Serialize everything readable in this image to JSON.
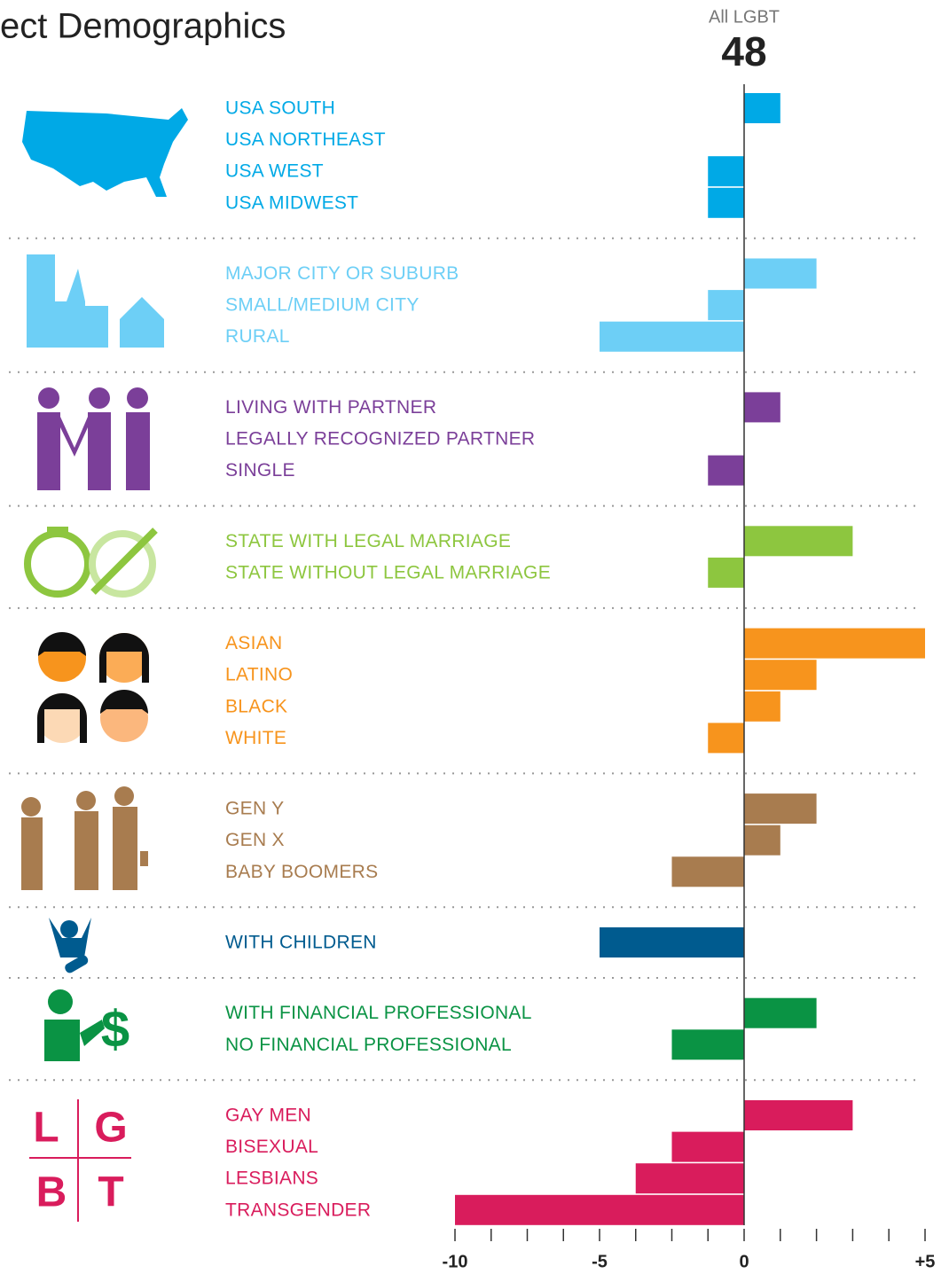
{
  "chart_data": {
    "type": "bar",
    "title": "ect Demographics",
    "baseline_label": "All LGBT",
    "baseline_value": 48,
    "icon_letters": [
      "L",
      "G",
      "B",
      "T"
    ],
    "xlim": [
      -10,
      5
    ],
    "xticks": [
      -10,
      -5,
      0,
      {
        "value": 5,
        "label": "+5"
      }
    ],
    "xticks_minor": [
      -8.75,
      -7.5,
      -6.25,
      -3.75,
      -2.5,
      -1.25,
      1,
      2,
      3,
      4
    ],
    "groups": [
      {
        "color": "#00a9e6",
        "categories": [
          "USA SOUTH",
          "USA NORTHEAST",
          "USA WEST",
          "USA MIDWEST"
        ],
        "values": [
          1,
          0,
          -1.25,
          -1.25
        ]
      },
      {
        "color": "#6dcff6",
        "categories": [
          "MAJOR CITY OR SUBURB",
          "SMALL/MEDIUM CITY",
          "RURAL"
        ],
        "values": [
          2,
          -1.25,
          -5
        ]
      },
      {
        "color": "#7b3f99",
        "categories": [
          "LIVING WITH PARTNER",
          "LEGALLY RECOGNIZED PARTNER",
          "SINGLE"
        ],
        "values": [
          1,
          0,
          -1.25
        ]
      },
      {
        "color": "#8dc63f",
        "categories": [
          "STATE WITH LEGAL MARRIAGE",
          "STATE WITHOUT LEGAL MARRIAGE"
        ],
        "values": [
          3,
          -1.25
        ]
      },
      {
        "color": "#f7941d",
        "categories": [
          "ASIAN",
          "LATINO",
          "BLACK",
          "WHITE"
        ],
        "values": [
          5,
          2,
          1,
          -1.25
        ]
      },
      {
        "color": "#a87c4f",
        "categories": [
          "GEN Y",
          "GEN X",
          "BABY BOOMERS"
        ],
        "values": [
          2,
          1,
          -2.5
        ]
      },
      {
        "color": "#005b8f",
        "categories": [
          "WITH CHILDREN"
        ],
        "values": [
          -5
        ]
      },
      {
        "color": "#0a9344",
        "categories": [
          "WITH FINANCIAL PROFESSIONAL",
          "NO FINANCIAL PROFESSIONAL"
        ],
        "values": [
          2,
          -2.5
        ]
      },
      {
        "color": "#d91c5c",
        "categories": [
          "GAY MEN",
          "BISEXUAL",
          "LESBIANS",
          "TRANSGENDER"
        ],
        "values": [
          3,
          -2.5,
          -3.75,
          -10
        ]
      }
    ]
  }
}
